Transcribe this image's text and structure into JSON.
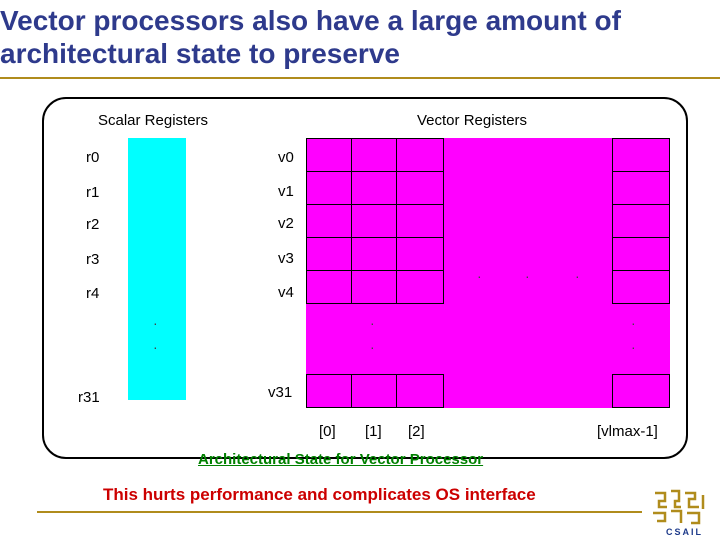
{
  "title": "Vector processors also have a large amount of architectural state to preserve",
  "frame": {
    "scalar_heading": "Scalar Registers",
    "vector_heading": "Vector Registers",
    "scalar_labels": [
      "r0",
      "r1",
      "r2",
      "r3",
      "r4",
      "r31"
    ],
    "vector_labels": [
      "v0",
      "v1",
      "v2",
      "v3",
      "v4",
      "v31"
    ],
    "index_labels": [
      "[0]",
      "[1]",
      "[2]",
      "[vlmax-1]"
    ],
    "caption": "Architectural State for Vector Processor"
  },
  "footer": "This hurts performance and complicates OS interface",
  "logo_text": "CSAIL",
  "colors": {
    "title": "#2e3a8c",
    "scalar_fill": "#00ffff",
    "vector_fill": "#ff00ff",
    "caption": "#008000",
    "footer": "#cc0000",
    "rule": "#b08c1c"
  }
}
